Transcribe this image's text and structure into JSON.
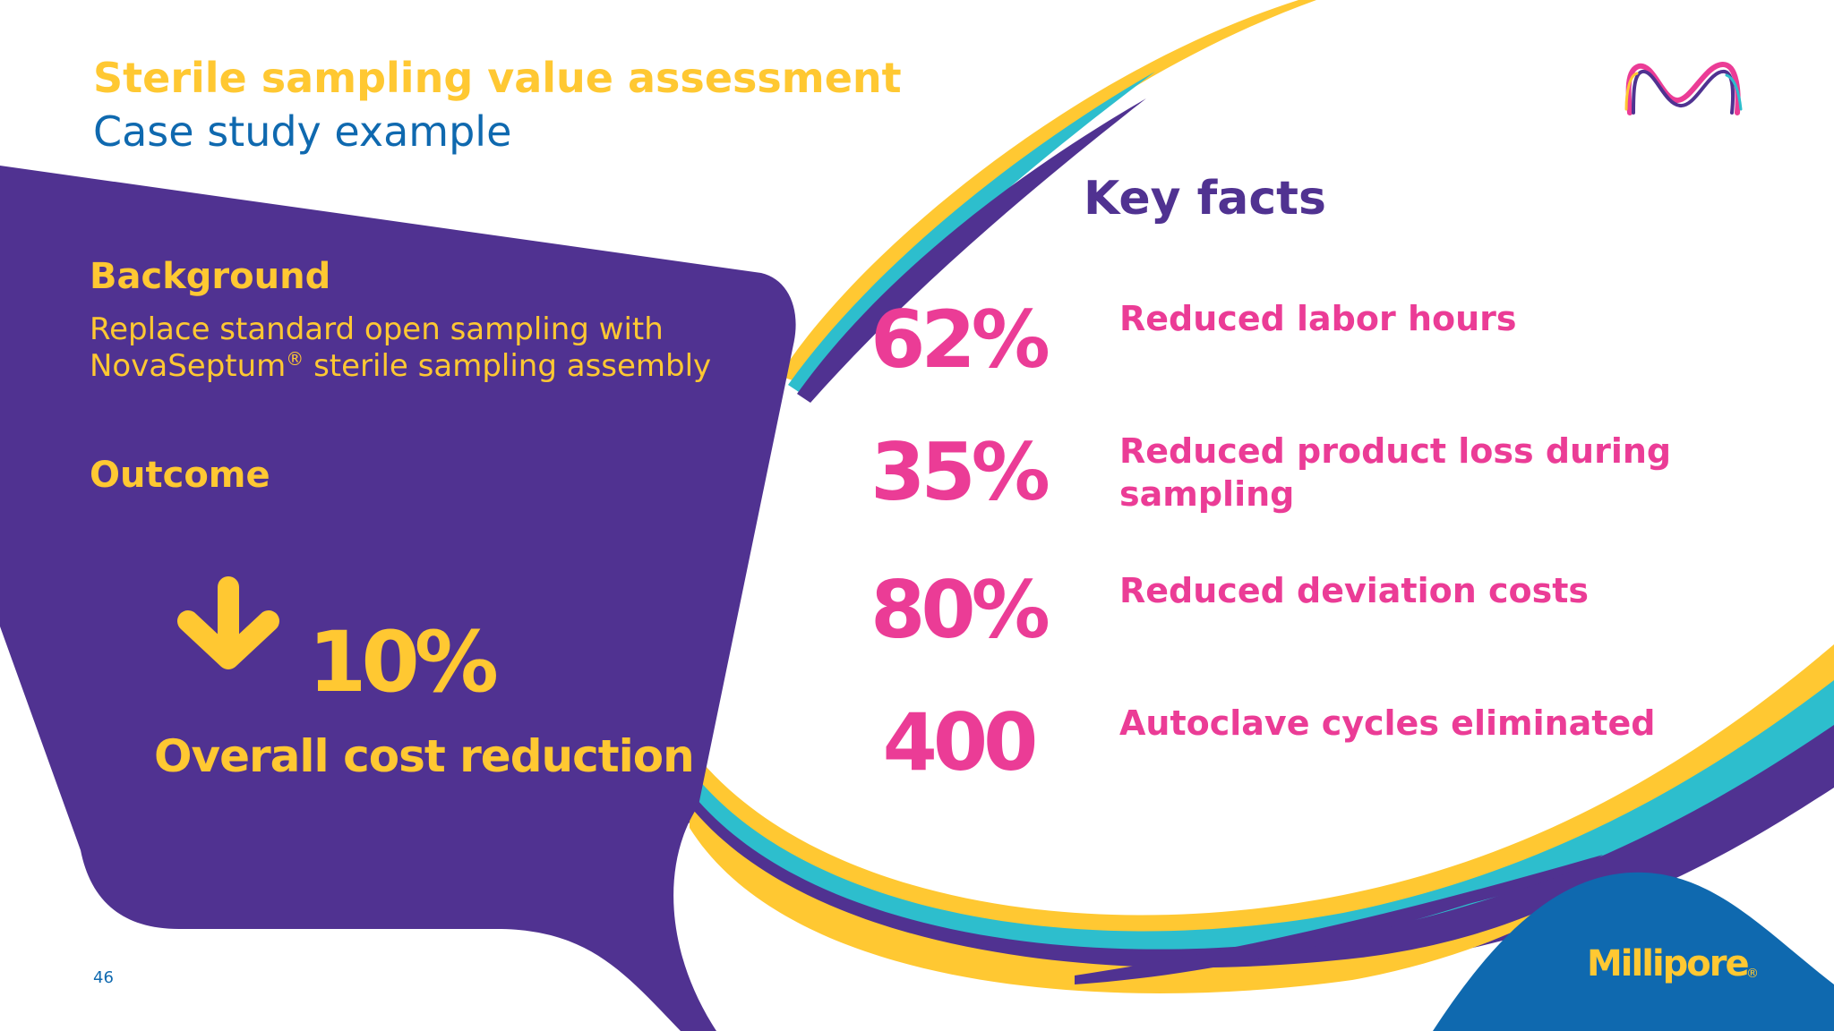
{
  "header": {
    "title": "Sterile sampling value assessment",
    "subtitle": "Case study example"
  },
  "background": {
    "heading": "Background",
    "line1": "Replace standard open sampling with",
    "line2_prefix": "NovaSeptum",
    "line2_registered": "®",
    "line2_suffix": " sterile sampling assembly"
  },
  "outcome": {
    "heading": "Outcome",
    "icon": "arrow-down-icon",
    "value": "10%",
    "label": "Overall cost reduction"
  },
  "key_facts": {
    "heading": "Key facts",
    "items": [
      {
        "value": "62%",
        "label_line1": "Reduced labor hours",
        "label_line2": ""
      },
      {
        "value": "35%",
        "label_line1": "Reduced product loss during",
        "label_line2": "sampling"
      },
      {
        "value": "80%",
        "label_line1": "Reduced deviation costs",
        "label_line2": ""
      },
      {
        "value": "400",
        "label_line1": "Autoclave cycles eliminated",
        "label_line2": ""
      }
    ]
  },
  "footer": {
    "page_number": "46",
    "brand": "Millipore",
    "brand_mark": "®"
  },
  "logo": {
    "icon": "m-logo-icon"
  },
  "colors": {
    "purple": "#503291",
    "yellow": "#FFC832",
    "magenta": "#EB3C96",
    "cyan": "#2DBECD",
    "blue": "#0F69AF"
  }
}
